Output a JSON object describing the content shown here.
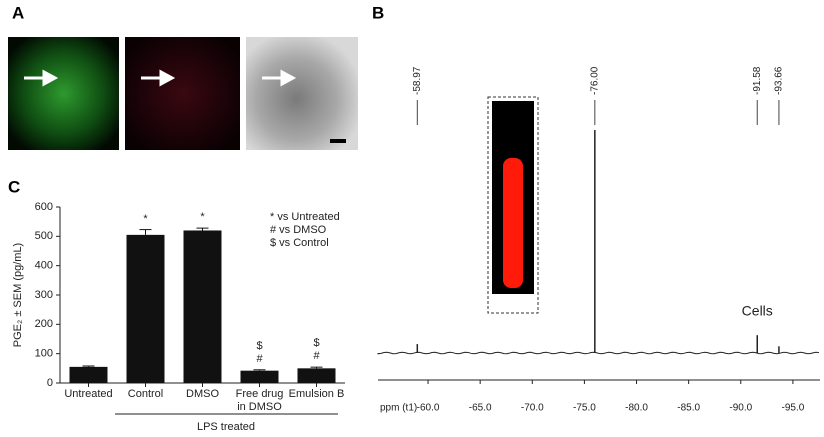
{
  "panels": {
    "a": "A",
    "b": "B",
    "c": "C"
  },
  "chart_data": [
    {
      "type": "bar",
      "ylabel": "PGE₂ ± SEM (pg/mL)",
      "categories": [
        "Untreated",
        "Control",
        "DMSO",
        "Free drug in DMSO",
        "Emulsion B"
      ],
      "values": [
        55,
        505,
        520,
        42,
        50
      ],
      "errors": [
        3,
        18,
        8,
        3,
        4
      ],
      "annotations": [
        null,
        "*",
        "*",
        "$ #",
        "$ #"
      ],
      "notes": [
        "* vs Untreated",
        "# vs DMSO",
        "$ vs Control"
      ],
      "group_label": "LPS treated",
      "color": "#111111",
      "ylim": [
        0,
        600
      ],
      "yticks": [
        0,
        100,
        200,
        300,
        400,
        500,
        600
      ]
    },
    {
      "type": "spectrum",
      "xlabel": "ppm (t1)",
      "peaks": [
        -58.97,
        -76.0,
        -91.58,
        -93.66
      ],
      "value_labels": [
        "-58.97",
        "-76.00",
        "-91.58",
        "-93.66"
      ],
      "intensities": [
        4,
        100,
        8,
        3
      ],
      "annotation": "Cells",
      "inset_label": "Cells",
      "color": "#222222",
      "xlim": [
        -55.2,
        -97.6
      ],
      "xticks": [
        {
          "value": -60,
          "label": "-60.0"
        },
        {
          "value": -65,
          "label": "-65.0"
        },
        {
          "value": -70,
          "label": "-70.0"
        },
        {
          "value": -75,
          "label": "-75.0"
        },
        {
          "value": -80,
          "label": "-80.0"
        },
        {
          "value": -85,
          "label": "-85.0"
        },
        {
          "value": -90,
          "label": "-90.0"
        },
        {
          "value": -95,
          "label": "-95.0"
        }
      ]
    }
  ]
}
